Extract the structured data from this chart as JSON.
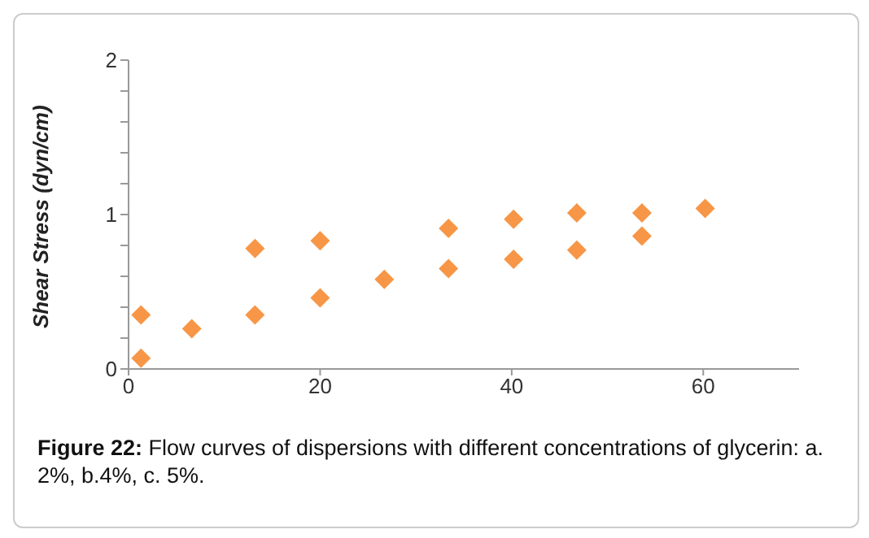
{
  "chart_data": {
    "type": "scatter",
    "ylabel": "Shear Stress (dyn/cm)",
    "x": [
      1.3,
      1.3,
      6.6,
      13.2,
      13.2,
      20,
      20,
      26.7,
      33.4,
      33.4,
      40.2,
      40.2,
      46.8,
      46.8,
      53.6,
      53.6,
      60.2
    ],
    "series": [
      {
        "color": "#f79646",
        "values": [
          0.35,
          0.07,
          0.26,
          0.78,
          0.35,
          0.83,
          0.46,
          0.58,
          0.91,
          0.65,
          0.97,
          0.71,
          1.01,
          0.77,
          1.01,
          0.86,
          1.04
        ]
      }
    ],
    "xlim": [
      0,
      70
    ],
    "xticks": [
      0,
      20,
      40,
      60
    ],
    "ylim": [
      0,
      2
    ],
    "yticks": [
      0,
      {
        "value": 0.2,
        "label": null
      },
      {
        "value": 0.4,
        "label": null
      },
      {
        "value": 0.6,
        "label": null
      },
      {
        "value": 0.8,
        "label": null
      },
      1,
      {
        "value": 1.2,
        "label": null
      },
      {
        "value": 1.4,
        "label": null
      },
      {
        "value": 1.6,
        "label": null
      },
      {
        "value": 1.8,
        "label": null
      },
      2
    ],
    "marker": "diamond",
    "grid": false,
    "legend": false,
    "annotations": [
      "Figure 22: Flow curves of dispersions with different concentrations of glycerin: a. 2%, b.4%, c. 5%."
    ]
  }
}
